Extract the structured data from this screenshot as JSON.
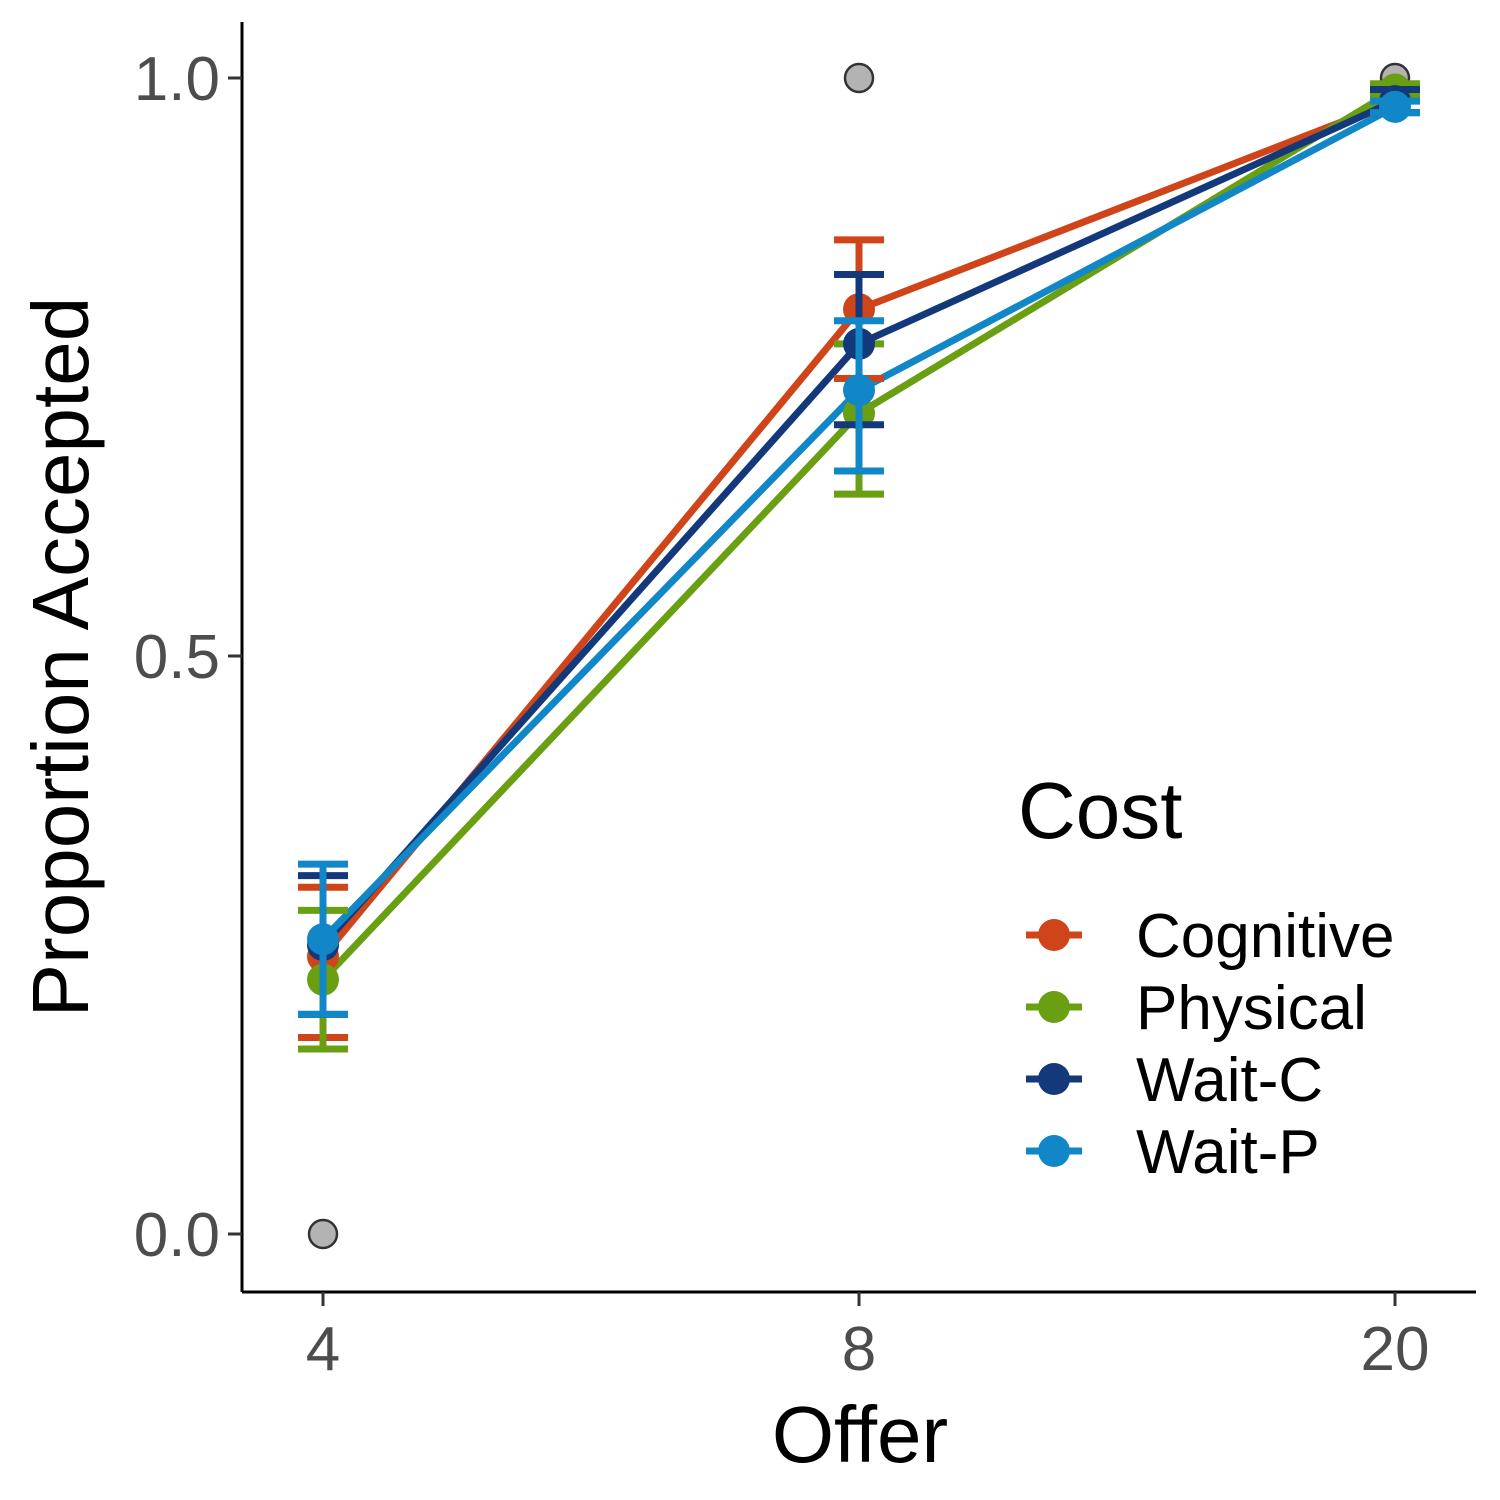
{
  "chart_data": {
    "type": "line",
    "title": "",
    "xlabel": "Offer",
    "ylabel": "Proportion Accepted",
    "categories": [
      "4",
      "8",
      "20"
    ],
    "x_tick_labels": [
      "4",
      "8",
      "20"
    ],
    "y_tick_labels": [
      "0.0",
      "0.5",
      "1.0"
    ],
    "y_ticks": [
      0.0,
      0.5,
      1.0
    ],
    "ylim": [
      -0.05,
      1.05
    ],
    "grid": false,
    "legend": {
      "title": "Cost",
      "position": "right"
    },
    "series": [
      {
        "name": "Cognitive",
        "color": "#cf4519",
        "values": [
          0.24,
          0.8,
          0.98
        ],
        "error_low": [
          0.17,
          0.74,
          0.97
        ],
        "error_high": [
          0.3,
          0.86,
          0.99
        ]
      },
      {
        "name": "Physical",
        "color": "#6a9f12",
        "values": [
          0.22,
          0.71,
          0.99
        ],
        "error_low": [
          0.16,
          0.64,
          0.985
        ],
        "error_high": [
          0.28,
          0.77,
          0.995
        ]
      },
      {
        "name": "Wait-C",
        "color": "#14397a",
        "values": [
          0.25,
          0.77,
          0.98
        ],
        "error_low": [
          0.19,
          0.7,
          0.97
        ],
        "error_high": [
          0.31,
          0.83,
          0.99
        ]
      },
      {
        "name": "Wait-P",
        "color": "#1287c7",
        "values": [
          0.255,
          0.73,
          0.975
        ],
        "error_low": [
          0.19,
          0.66,
          0.97
        ],
        "error_high": [
          0.32,
          0.79,
          0.98
        ]
      }
    ],
    "reference_points": {
      "color": "#b3b3b3",
      "values": [
        0.0,
        1.0,
        1.0
      ]
    }
  }
}
